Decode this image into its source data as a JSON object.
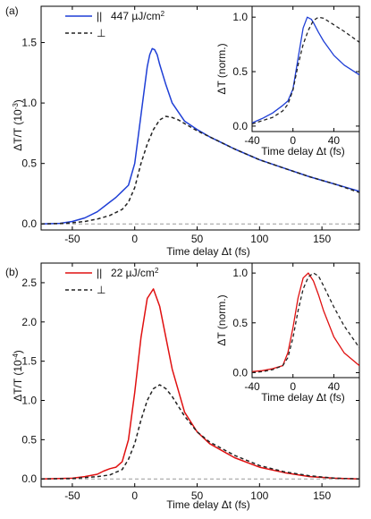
{
  "figure": {
    "panels": [
      {
        "tag": "(a)",
        "legend": [
          {
            "symbol": "||",
            "text": "447 µJ/cm",
            "sup": "2",
            "color": "#1f3fd6",
            "dash": "solid"
          },
          {
            "symbol": "⊥",
            "text": "",
            "sup": "",
            "color": "#222222",
            "dash": "dashed"
          }
        ],
        "ylabel": "ΔT/T (10",
        "ylabel_exp": "-3",
        "ylabel_tail": ")"
      },
      {
        "tag": "(b)",
        "legend": [
          {
            "symbol": "||",
            "text": "22 µJ/cm",
            "sup": "2",
            "color": "#e01010",
            "dash": "solid"
          },
          {
            "symbol": "⊥",
            "text": "",
            "sup": "",
            "color": "#222222",
            "dash": "dashed"
          }
        ],
        "ylabel": "ΔT/T (10",
        "ylabel_exp": "-4",
        "ylabel_tail": ")"
      }
    ],
    "xlabel": "Time delay Δt (fs)",
    "inset_xlabel": "Time delay Δt (fs)",
    "inset_ylabel": "ΔT (norm.)"
  },
  "chart_data": [
    {
      "type": "line",
      "panel": "(a)",
      "xlabel": "Time delay Δt (fs)",
      "ylabel": "ΔT/T (10^-3)",
      "xlim": [
        -75,
        180
      ],
      "ylim": [
        -0.05,
        1.8
      ],
      "xticks": [
        -50,
        0,
        50,
        100,
        150
      ],
      "yticks": [
        0.0,
        0.5,
        1.0,
        1.5
      ],
      "ytick_labels": [
        "0.0",
        "0.5",
        "1.0",
        "1.5"
      ],
      "baseline": 0,
      "series": [
        {
          "name": "|| 447 µJ/cm2",
          "color": "#1f3fd6",
          "style": "solid",
          "x": [
            -75,
            -60,
            -50,
            -40,
            -30,
            -20,
            -15,
            -10,
            -5,
            0,
            5,
            10,
            12,
            14,
            16,
            18,
            20,
            25,
            30,
            40,
            50,
            60,
            80,
            100,
            120,
            140,
            160,
            180
          ],
          "y": [
            0,
            0.005,
            0.02,
            0.05,
            0.1,
            0.18,
            0.22,
            0.27,
            0.32,
            0.5,
            0.9,
            1.3,
            1.4,
            1.45,
            1.44,
            1.4,
            1.32,
            1.15,
            1.0,
            0.85,
            0.78,
            0.72,
            0.62,
            0.53,
            0.46,
            0.39,
            0.33,
            0.27
          ]
        },
        {
          "name": "⊥",
          "color": "#222222",
          "style": "dashed",
          "x": [
            -75,
            -60,
            -50,
            -40,
            -30,
            -20,
            -10,
            -5,
            0,
            5,
            10,
            15,
            20,
            25,
            30,
            35,
            40,
            50,
            60,
            80,
            100,
            120,
            140,
            160,
            180
          ],
          "y": [
            0,
            0.003,
            0.01,
            0.02,
            0.04,
            0.07,
            0.12,
            0.18,
            0.3,
            0.5,
            0.66,
            0.78,
            0.86,
            0.89,
            0.88,
            0.86,
            0.83,
            0.77,
            0.72,
            0.62,
            0.53,
            0.46,
            0.39,
            0.33,
            0.26
          ]
        }
      ],
      "inset": {
        "xlabel": "Time delay Δt (fs)",
        "ylabel": "ΔT (norm.)",
        "xlim": [
          -40,
          65
        ],
        "ylim": [
          -0.05,
          1.1
        ],
        "xticks": [
          -40,
          0,
          40
        ],
        "yticks": [
          0.0,
          0.5,
          1.0
        ],
        "ytick_labels": [
          "0.0",
          "0.5",
          "1.0"
        ],
        "series": [
          {
            "name": "||",
            "color": "#1f3fd6",
            "style": "solid",
            "x": [
              -40,
              -30,
              -20,
              -10,
              -5,
              0,
              5,
              10,
              14,
              18,
              20,
              25,
              30,
              40,
              50,
              65
            ],
            "y": [
              0.03,
              0.07,
              0.12,
              0.19,
              0.23,
              0.34,
              0.62,
              0.9,
              1.0,
              0.98,
              0.95,
              0.86,
              0.78,
              0.65,
              0.56,
              0.47
            ]
          },
          {
            "name": "⊥",
            "color": "#222222",
            "style": "dashed",
            "x": [
              -40,
              -30,
              -20,
              -10,
              -5,
              0,
              5,
              10,
              15,
              20,
              25,
              30,
              40,
              50,
              65
            ],
            "y": [
              0.02,
              0.05,
              0.08,
              0.14,
              0.2,
              0.33,
              0.56,
              0.75,
              0.88,
              0.97,
              1.0,
              0.99,
              0.93,
              0.87,
              0.77
            ]
          }
        ]
      }
    },
    {
      "type": "line",
      "panel": "(b)",
      "xlabel": "Time delay Δt (fs)",
      "ylabel": "ΔT/T (10^-4)",
      "xlim": [
        -75,
        180
      ],
      "ylim": [
        -0.1,
        2.75
      ],
      "xticks": [
        -50,
        0,
        50,
        100,
        150
      ],
      "yticks": [
        0.0,
        0.5,
        1.0,
        1.5,
        2.0,
        2.5
      ],
      "ytick_labels": [
        "0.0",
        "0.5",
        "1.0",
        "1.5",
        "2.0",
        "2.5"
      ],
      "baseline": 0,
      "series": [
        {
          "name": "|| 22 µJ/cm2",
          "color": "#e01010",
          "style": "solid",
          "x": [
            -75,
            -50,
            -40,
            -30,
            -25,
            -20,
            -15,
            -10,
            -5,
            0,
            5,
            10,
            15,
            20,
            25,
            30,
            40,
            50,
            60,
            80,
            100,
            120,
            140,
            160,
            180
          ],
          "y": [
            0,
            0.01,
            0.03,
            0.06,
            0.1,
            0.13,
            0.15,
            0.22,
            0.5,
            1.1,
            1.8,
            2.3,
            2.42,
            2.2,
            1.8,
            1.4,
            0.85,
            0.6,
            0.45,
            0.27,
            0.15,
            0.08,
            0.03,
            0.01,
            0.0
          ]
        },
        {
          "name": "⊥",
          "color": "#222222",
          "style": "dashed",
          "x": [
            -75,
            -50,
            -30,
            -20,
            -10,
            -5,
            0,
            5,
            10,
            15,
            20,
            25,
            30,
            40,
            50,
            60,
            80,
            100,
            120,
            140,
            160,
            180
          ],
          "y": [
            0,
            0.005,
            0.03,
            0.05,
            0.12,
            0.25,
            0.45,
            0.75,
            1.0,
            1.15,
            1.2,
            1.15,
            1.05,
            0.8,
            0.6,
            0.47,
            0.3,
            0.17,
            0.09,
            0.04,
            0.01,
            0.0
          ]
        }
      ],
      "inset": {
        "xlabel": "Time delay Δt (fs)",
        "ylabel": "ΔT (norm.)",
        "xlim": [
          -40,
          65
        ],
        "ylim": [
          -0.05,
          1.1
        ],
        "xticks": [
          -40,
          0,
          40
        ],
        "yticks": [
          0.0,
          0.5,
          1.0
        ],
        "ytick_labels": [
          "0.0",
          "0.5",
          "1.0"
        ],
        "series": [
          {
            "name": "||",
            "color": "#e01010",
            "style": "solid",
            "x": [
              -40,
              -30,
              -20,
              -10,
              -5,
              0,
              5,
              10,
              15,
              20,
              25,
              30,
              40,
              50,
              65
            ],
            "y": [
              0.01,
              0.02,
              0.04,
              0.07,
              0.2,
              0.45,
              0.75,
              0.95,
              1.0,
              0.92,
              0.78,
              0.62,
              0.36,
              0.2,
              0.07
            ]
          },
          {
            "name": "⊥",
            "color": "#222222",
            "style": "dashed",
            "x": [
              -40,
              -30,
              -20,
              -10,
              -5,
              0,
              5,
              10,
              15,
              20,
              25,
              30,
              40,
              50,
              65
            ],
            "y": [
              0.0,
              0.01,
              0.03,
              0.07,
              0.15,
              0.35,
              0.62,
              0.84,
              0.96,
              1.0,
              0.97,
              0.87,
              0.66,
              0.47,
              0.25
            ]
          }
        ]
      }
    }
  ]
}
